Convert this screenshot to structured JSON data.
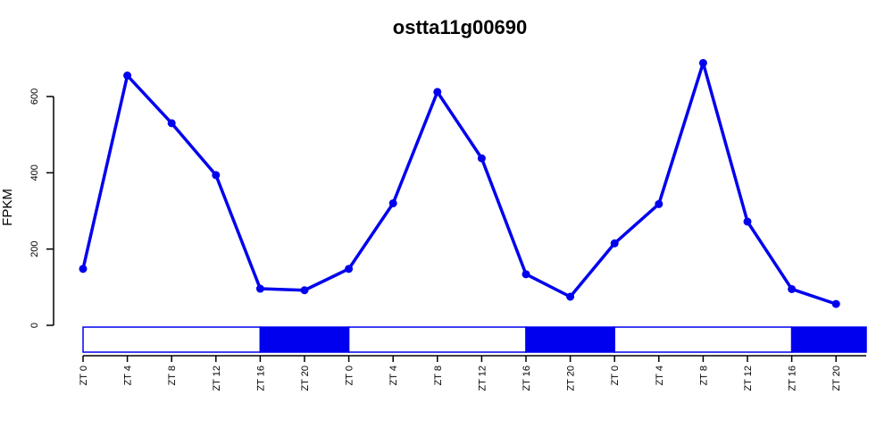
{
  "chart_data": {
    "type": "line",
    "title": "ostta11g00690",
    "xlabel": "",
    "ylabel": "FPKM",
    "ylim": [
      0,
      700
    ],
    "yticks": [
      0,
      200,
      400,
      600
    ],
    "ytick_labels": [
      "0",
      "200",
      "400",
      "600"
    ],
    "categories": [
      "ZT 0",
      "ZT 4",
      "ZT 8",
      "ZT 12",
      "ZT 16",
      "ZT 20",
      "ZT 0",
      "ZT 4",
      "ZT 8",
      "ZT 12",
      "ZT 16",
      "ZT 20",
      "ZT 0",
      "ZT 4",
      "ZT 8",
      "ZT 12",
      "ZT 16",
      "ZT 20"
    ],
    "series": [
      {
        "values": [
          148,
          655,
          530,
          394,
          96,
          92,
          148,
          320,
          612,
          438,
          134,
          75,
          215,
          318,
          688,
          272,
          95,
          56
        ]
      }
    ],
    "light_dark_bar": [
      {
        "phase": "light",
        "from": "ZT 0",
        "to": "ZT 16"
      },
      {
        "phase": "dark",
        "from": "ZT 16",
        "to": "ZT 0"
      },
      {
        "phase": "light",
        "from": "ZT 0",
        "to": "ZT 16"
      },
      {
        "phase": "dark",
        "from": "ZT 16",
        "to": "ZT 0"
      },
      {
        "phase": "light",
        "from": "ZT 0",
        "to": "ZT 16"
      },
      {
        "phase": "dark",
        "from": "ZT 16",
        "to": "end"
      }
    ],
    "colors": {
      "line": "#0000ee",
      "dark_phase": "#0000ee",
      "light_phase": "#ffffff",
      "axis": "#000000"
    },
    "grid": false,
    "legend": "none"
  }
}
